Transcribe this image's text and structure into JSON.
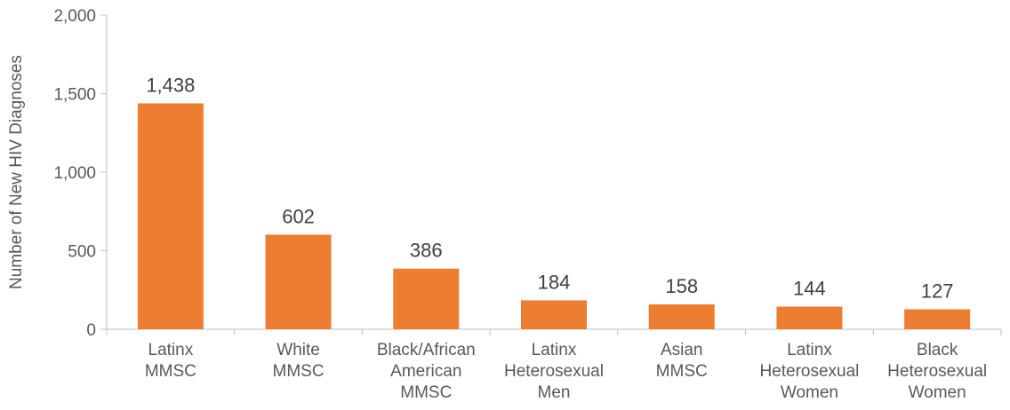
{
  "chart_data": {
    "type": "bar",
    "title": "",
    "xlabel": "",
    "ylabel": "Number of New HIV Diagnoses",
    "ylim": [
      0,
      2000
    ],
    "yticks": [
      0,
      500,
      1000,
      1500,
      2000
    ],
    "ytick_labels": [
      "0",
      "500",
      "1,000",
      "1,500",
      "2,000"
    ],
    "grid": false,
    "bar_color": "#ED7D31",
    "categories": [
      [
        "Latinx",
        "MMSC"
      ],
      [
        "White",
        "MMSC"
      ],
      [
        "Black/African",
        "American",
        "MMSC"
      ],
      [
        "Latinx",
        "Heterosexual",
        "Men"
      ],
      [
        "Asian",
        "MMSC"
      ],
      [
        "Latinx",
        "Heterosexual",
        "Women"
      ],
      [
        "Black",
        "Heterosexual",
        "Women"
      ]
    ],
    "values": [
      1438,
      602,
      386,
      184,
      158,
      144,
      127
    ],
    "data_labels": [
      "1,438",
      "602",
      "386",
      "184",
      "158",
      "144",
      "127"
    ]
  }
}
